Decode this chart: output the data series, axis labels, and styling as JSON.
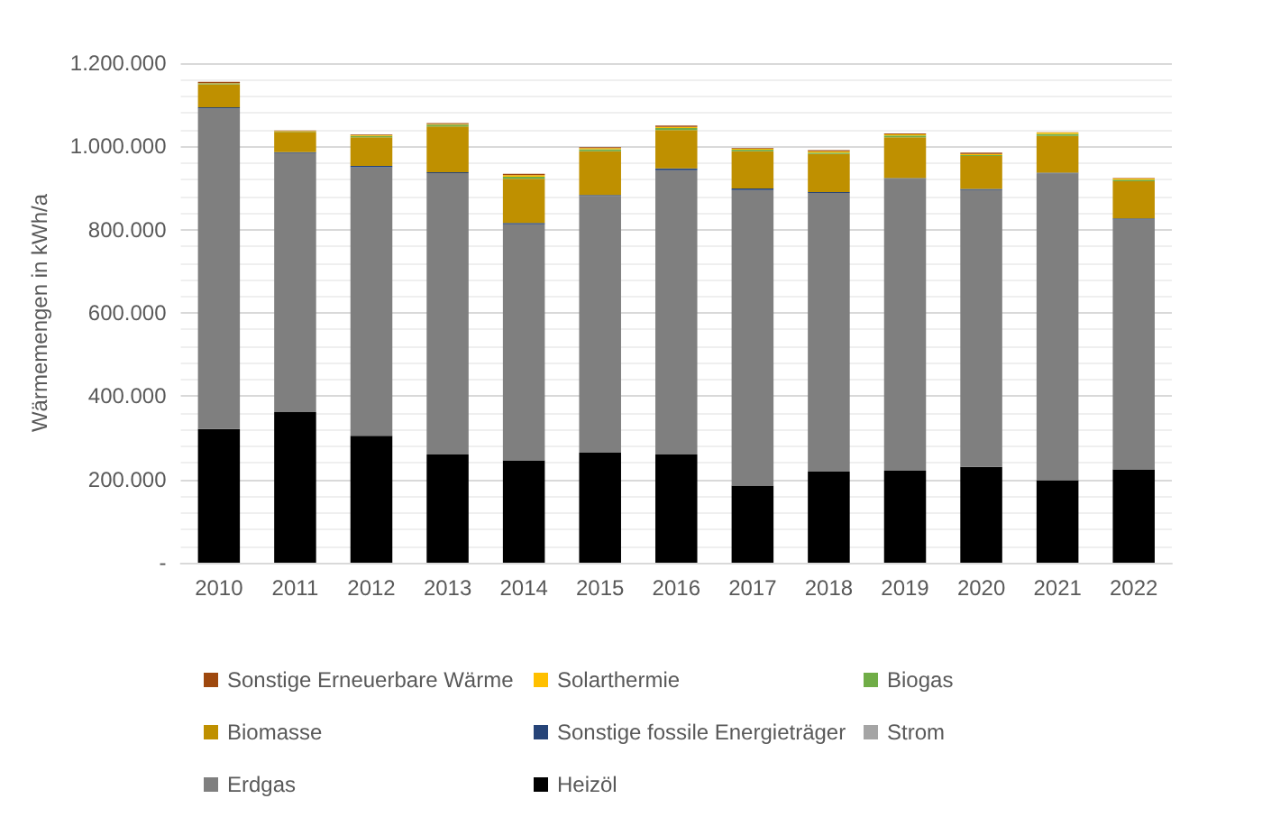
{
  "chart_data": {
    "type": "bar",
    "stacked": true,
    "ylabel": "Wärmemengen in kWh/a",
    "categories": [
      "2010",
      "2011",
      "2012",
      "2013",
      "2014",
      "2015",
      "2016",
      "2017",
      "2018",
      "2019",
      "2020",
      "2021",
      "2022"
    ],
    "series": [
      {
        "name": "Heizöl",
        "color": "#000000",
        "values": [
          321000,
          362000,
          305000,
          260000,
          246000,
          264000,
          260000,
          185000,
          219000,
          221000,
          230000,
          198000,
          224000
        ]
      },
      {
        "name": "Erdgas",
        "color": "#7f7f7f",
        "values": [
          770000,
          622000,
          645000,
          676000,
          567000,
          617000,
          683000,
          710000,
          669000,
          701000,
          665000,
          737000,
          600000
        ]
      },
      {
        "name": "Strom",
        "color": "#a5a5a5",
        "values": [
          0,
          0,
          0,
          0,
          0,
          0,
          0,
          0,
          0,
          0,
          0,
          0,
          0
        ]
      },
      {
        "name": "Sonstige fossile Energieträger",
        "color": "#264478",
        "values": [
          3000,
          2000,
          3000,
          2000,
          3000,
          2000,
          4000,
          4000,
          2000,
          2000,
          3000,
          2000,
          3000
        ]
      },
      {
        "name": "Biomasse",
        "color": "#bf9000",
        "values": [
          55000,
          49000,
          69000,
          110000,
          106000,
          105000,
          92000,
          89000,
          92000,
          98000,
          79000,
          88000,
          89000
        ]
      },
      {
        "name": "Biogas",
        "color": "#70ad47",
        "values": [
          2000,
          1000,
          3000,
          4000,
          5000,
          5000,
          5000,
          4000,
          3000,
          4000,
          2000,
          5000,
          4000
        ]
      },
      {
        "name": "Solarthermie",
        "color": "#ffc000",
        "values": [
          1000,
          1000,
          2000,
          2000,
          4000,
          3000,
          3000,
          2000,
          3000,
          3000,
          3000,
          3000,
          3000
        ]
      },
      {
        "name": "Sonstige Erneuerbare Wärme",
        "color": "#9e480e",
        "values": [
          3000,
          1000,
          2000,
          2000,
          3000,
          2000,
          3000,
          2000,
          3000,
          2000,
          3000,
          1000,
          1000
        ]
      }
    ],
    "ylim": [
      0,
      1200000
    ],
    "yticks": [
      {
        "value": 0,
        "label": "-"
      },
      {
        "value": 200000,
        "label": "200.000"
      },
      {
        "value": 400000,
        "label": "400.000"
      },
      {
        "value": 600000,
        "label": "600.000"
      },
      {
        "value": 800000,
        "label": "800.000"
      },
      {
        "value": 1000000,
        "label": "1.000.000"
      },
      {
        "value": 1200000,
        "label": "1.200.000"
      }
    ],
    "grid": "y",
    "legend": "bottom"
  }
}
